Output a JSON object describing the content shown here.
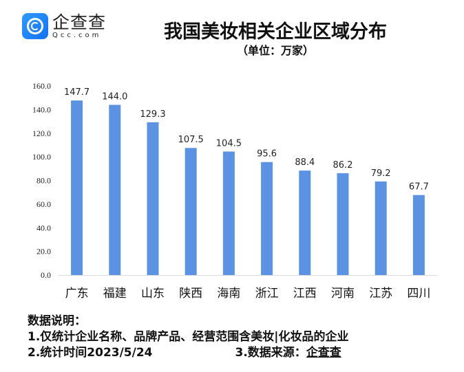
{
  "logo": {
    "cn": "企查查",
    "en": "Qcc.com"
  },
  "colors": {
    "bar": "#5b93e2",
    "axis": "#d9d9d9"
  },
  "chart_data": {
    "type": "bar",
    "title": "我国美妆相关企业区域分布",
    "subtitle": "（单位：万家）",
    "categories": [
      "广东",
      "福建",
      "山东",
      "陕西",
      "海南",
      "浙江",
      "江西",
      "河南",
      "江苏",
      "四川"
    ],
    "values": [
      147.7,
      144.0,
      129.3,
      107.5,
      104.5,
      95.6,
      88.4,
      86.2,
      79.2,
      67.7
    ],
    "value_labels": [
      "147.7",
      "144.0",
      "129.3",
      "107.5",
      "104.5",
      "95.6",
      "88.4",
      "86.2",
      "79.2",
      "67.7"
    ],
    "ylim": [
      0,
      160
    ],
    "yticks": [
      "0.0",
      "20.0",
      "40.0",
      "60.0",
      "80.0",
      "100.0",
      "120.0",
      "140.0",
      "160.0"
    ],
    "grid": false,
    "legend": "none"
  },
  "notes": {
    "heading": "数据说明：",
    "line1": "1.仅统计企业名称、品牌产品、经营范围含美妆|化妆品的企业",
    "line2": "2.统计时间2023/5/24",
    "line3_prefix": "3.数据来源：",
    "line3_source": "企查查"
  }
}
